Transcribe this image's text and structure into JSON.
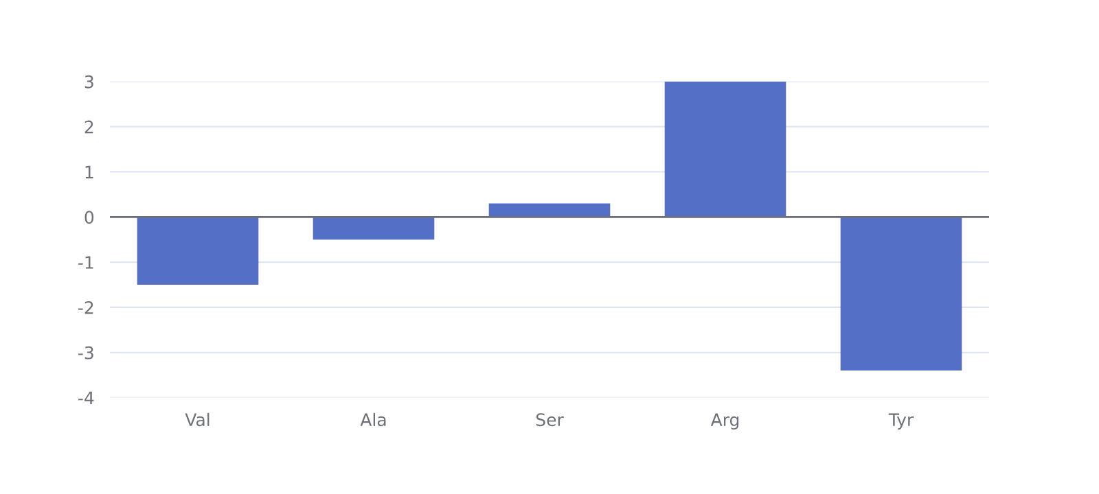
{
  "chart_data": {
    "type": "bar",
    "categories": [
      "Val",
      "Ala",
      "Ser",
      "Arg",
      "Tyr"
    ],
    "values": [
      -1.5,
      -0.5,
      0.3,
      3,
      -3.4
    ],
    "color": "#5470c6",
    "ylim": [
      -4,
      3
    ],
    "yticks": [
      -4,
      -3,
      -2,
      -1,
      0,
      1,
      2,
      3
    ],
    "grid": "y"
  }
}
